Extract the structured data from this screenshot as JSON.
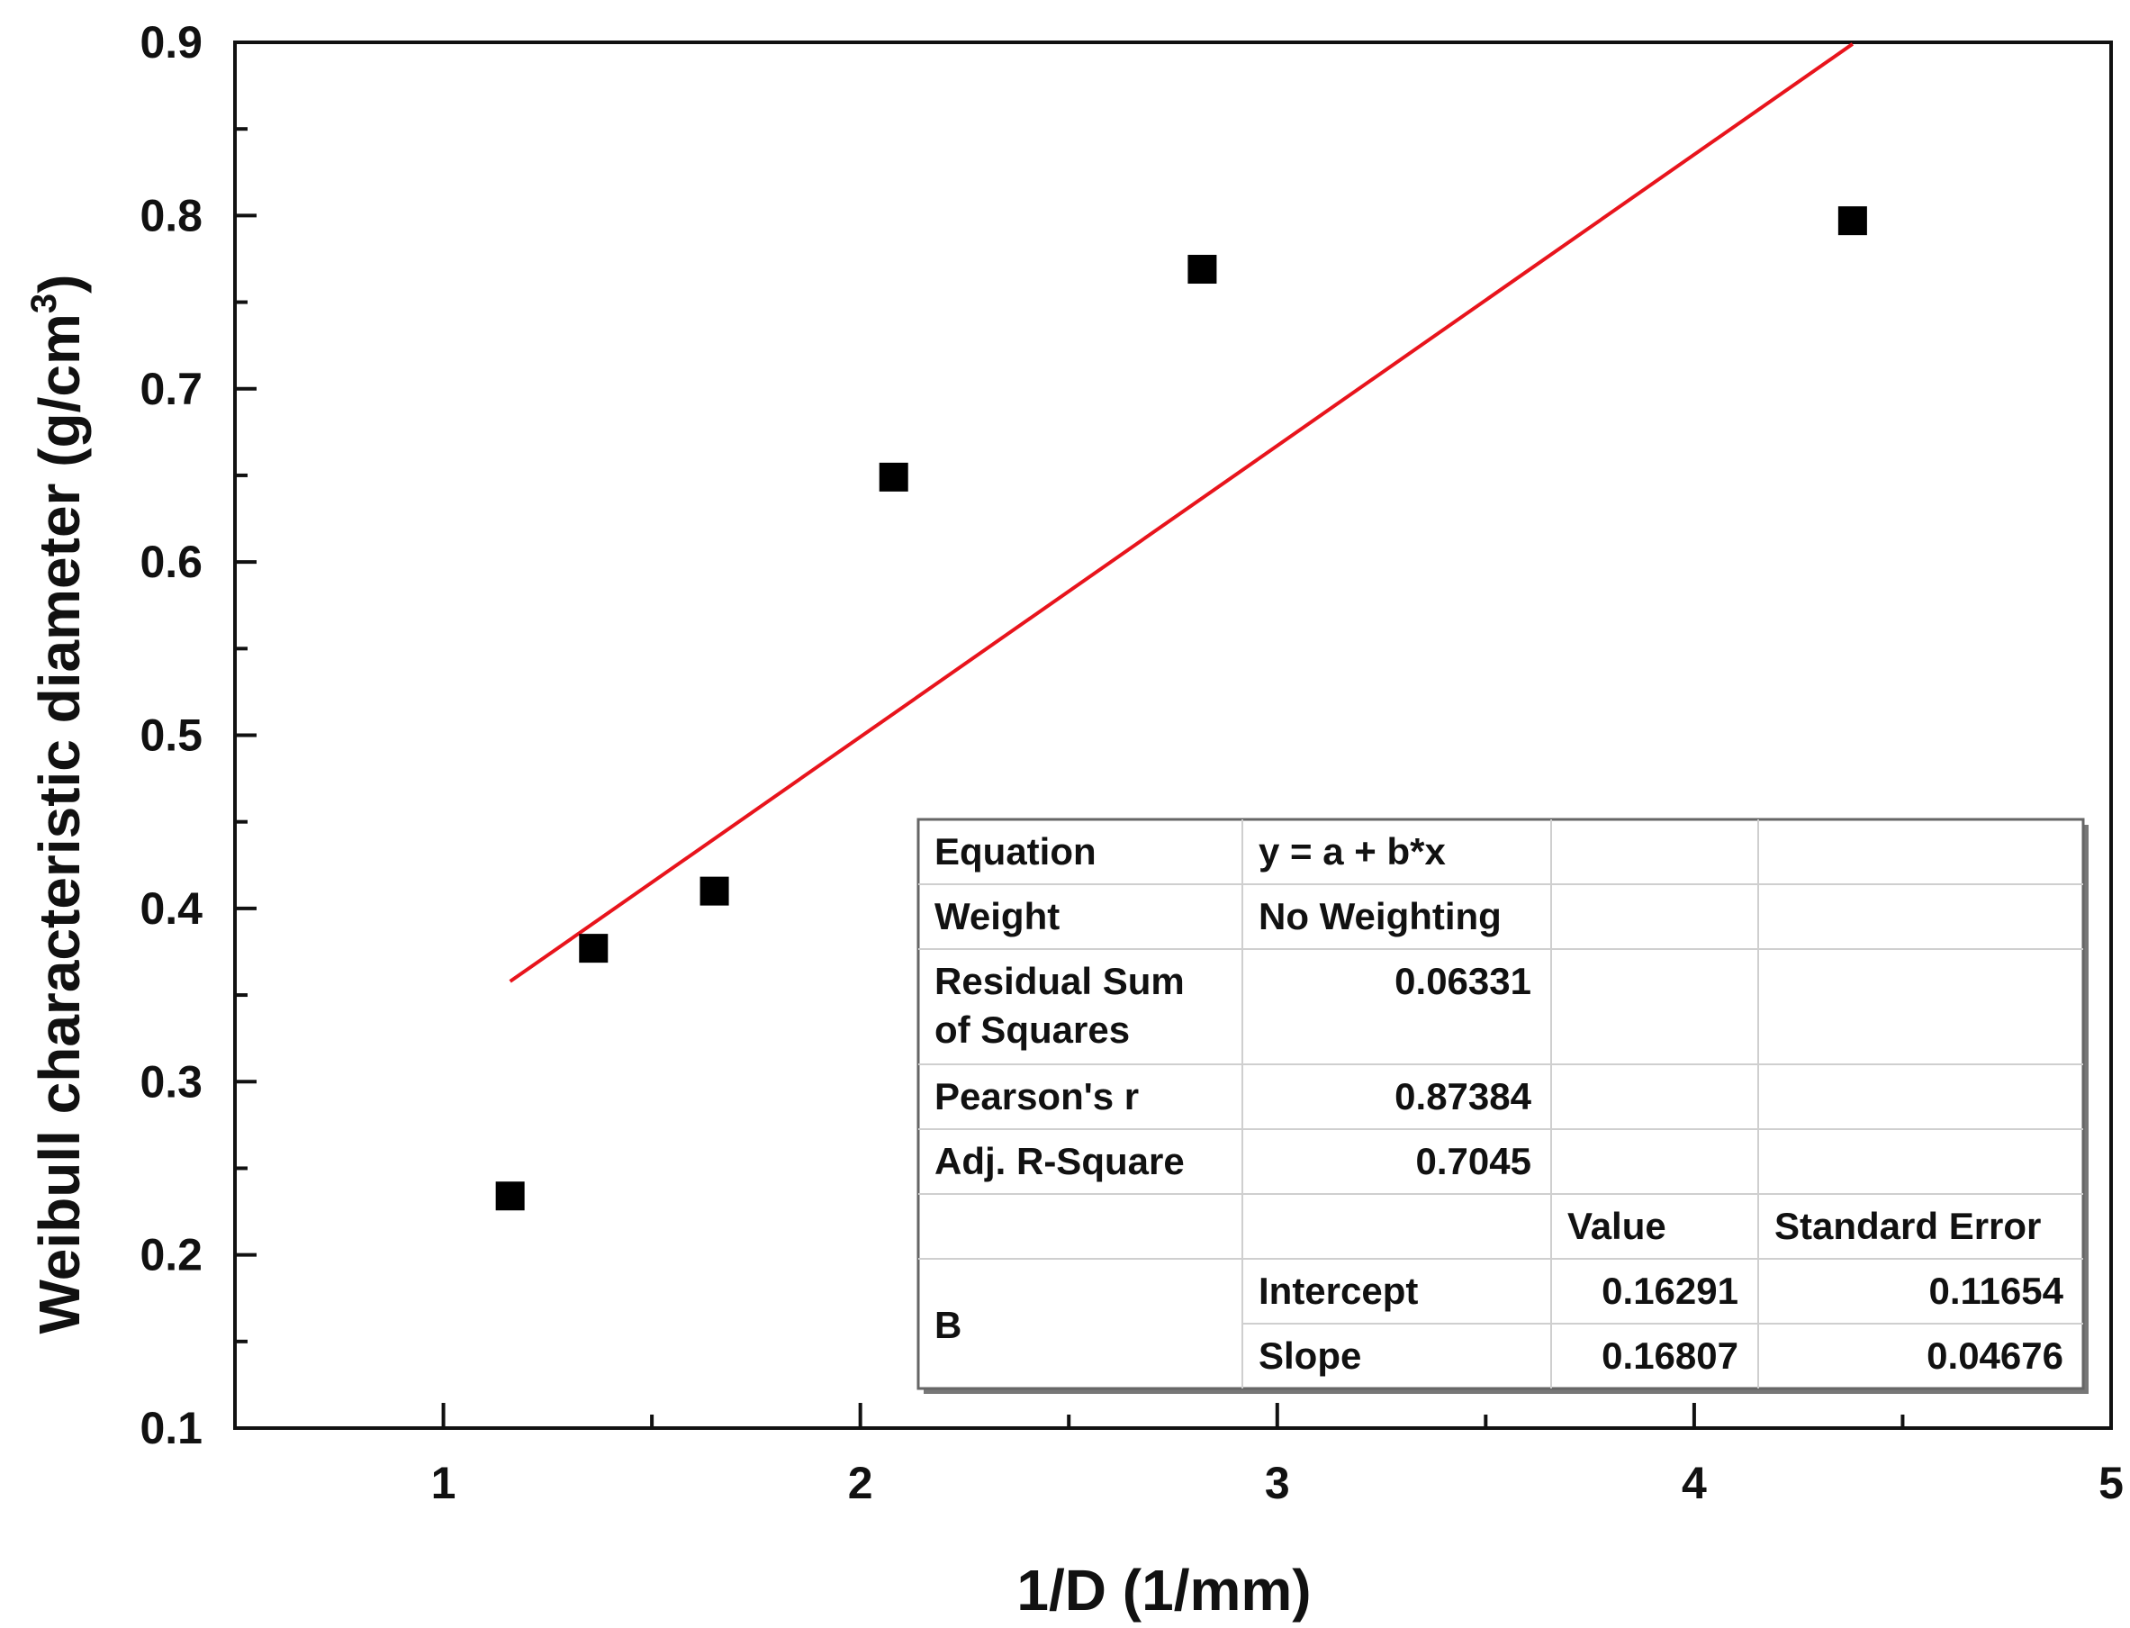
{
  "chart_data": {
    "type": "scatter",
    "xlabel": "1/D (1/mm)",
    "ylabel_main": "Weibull characteristic diameter (g/cm",
    "ylabel_sup": "3",
    "ylabel_close": ")",
    "xlim": [
      0.5,
      5
    ],
    "ylim": [
      0.1,
      0.9
    ],
    "x_ticks": [
      1,
      2,
      3,
      4,
      5
    ],
    "x_minor_ticks": [
      1.5,
      2.5,
      3.5,
      4.5
    ],
    "y_ticks": [
      0.1,
      0.2,
      0.3,
      0.4,
      0.5,
      0.6,
      0.7,
      0.8,
      0.9
    ],
    "x_tick_labels": [
      "1",
      "2",
      "3",
      "4",
      "5"
    ],
    "y_tick_labels": [
      "0.1",
      "0.2",
      "0.3",
      "0.4",
      "0.5",
      "0.6",
      "0.7",
      "0.8",
      "0.9"
    ],
    "grid": false,
    "series": [
      {
        "type": "scatter",
        "marker": "square",
        "color": "#000000",
        "x": [
          1.16,
          1.36,
          1.65,
          2.08,
          2.82,
          4.38
        ],
        "y": [
          0.234,
          0.377,
          0.41,
          0.649,
          0.769,
          0.797
        ]
      }
    ],
    "fit_line": {
      "color": "#e8141c",
      "intercept": 0.16291,
      "slope": 0.16807,
      "x_start": 1.16,
      "x_end": 4.38
    },
    "fit_table": {
      "rows": [
        [
          "Equation",
          "y = a + b*x",
          "",
          ""
        ],
        [
          "Weight",
          "No Weighting",
          "",
          ""
        ],
        [
          "Residual Sum|of Squares",
          "0.06331",
          "",
          ""
        ],
        [
          "Pearson's r",
          "0.87384",
          "",
          ""
        ],
        [
          "Adj. R-Square",
          "0.7045",
          "",
          ""
        ],
        [
          "",
          "",
          "Value",
          "Standard Error"
        ],
        [
          "B",
          "Intercept",
          "0.16291",
          "0.11654"
        ],
        [
          "",
          "Slope",
          "0.16807",
          "0.04676"
        ]
      ]
    }
  }
}
